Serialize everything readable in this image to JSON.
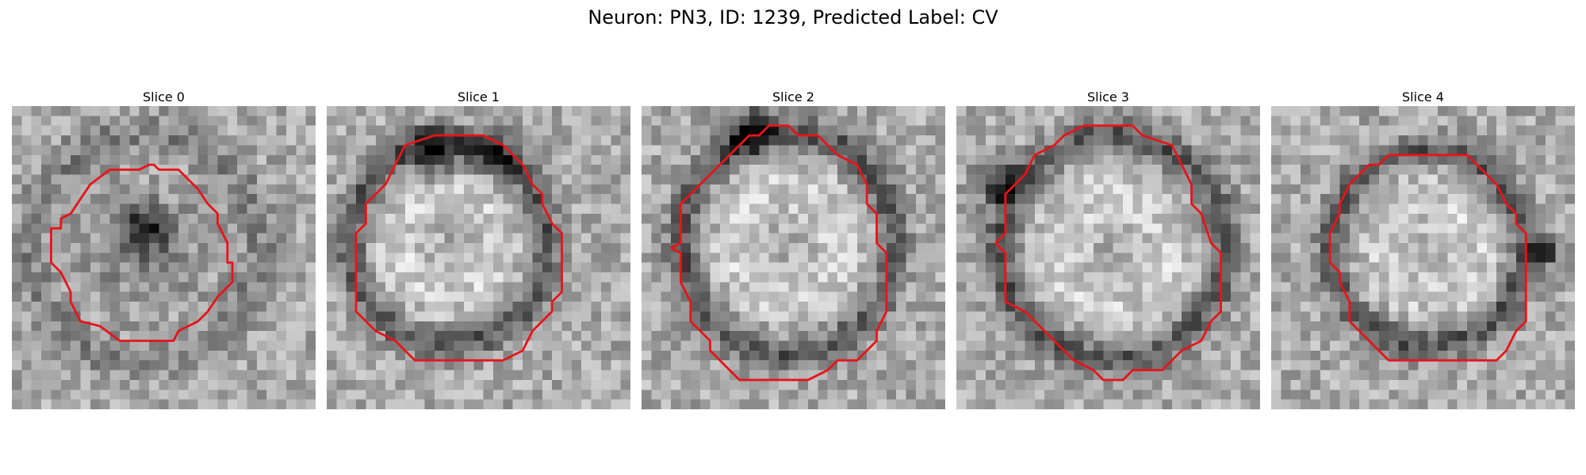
{
  "figure": {
    "title": "Neuron: PN3, ID: 1239, Predicted Label: CV"
  },
  "panels": [
    {
      "title": "Slice 0"
    },
    {
      "title": "Slice 1"
    },
    {
      "title": "Slice 2"
    },
    {
      "title": "Slice 3"
    },
    {
      "title": "Slice 4"
    }
  ],
  "colors": {
    "contour": "#e8141a",
    "background": "#ffffff"
  }
}
